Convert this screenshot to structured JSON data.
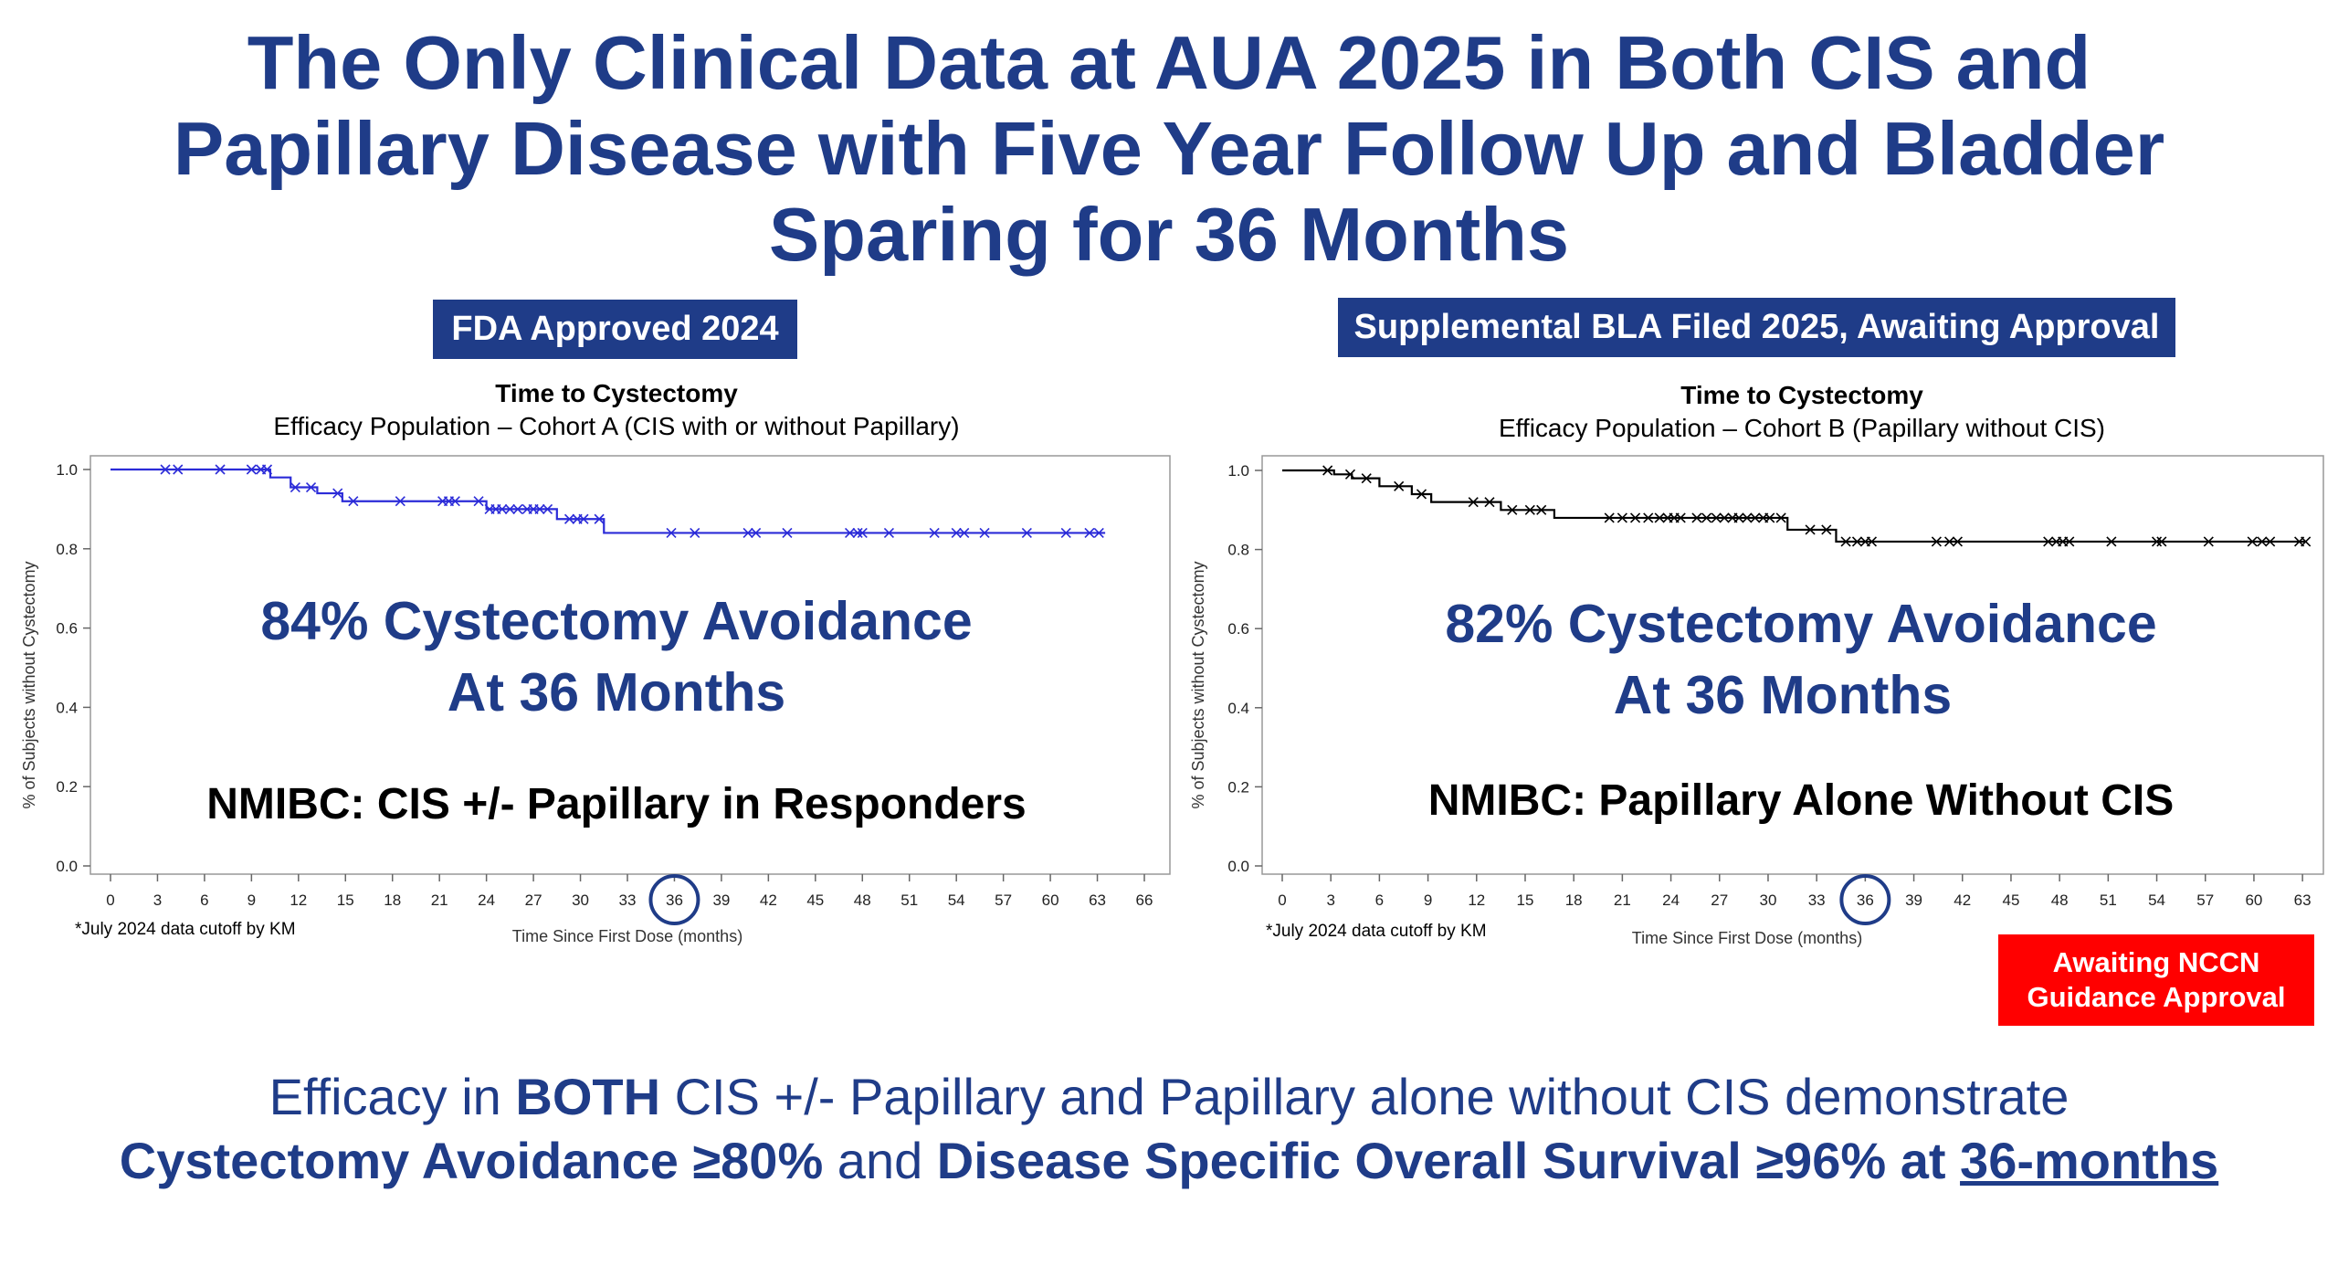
{
  "title_lines": [
    "The Only Clinical Data at AUA 2025 in Both CIS and",
    "Papillary Disease with Five Year Follow Up and Bladder",
    "Sparing for 36 Months"
  ],
  "badge_left": "FDA Approved 2024",
  "badge_right": "Supplemental BLA Filed 2025, Awaiting Approval",
  "charts": [
    {
      "title": "Time to Cystectomy",
      "subtitle": "Efficacy Population – Cohort A (CIS with or without Papillary)",
      "ylabel": "% of Subjects without Cystectomy",
      "xlabel": "Time Since First Dose (months)",
      "footnote": "*July 2024 data cutoff by KM",
      "highlight": "84% Cystectomy Avoidance",
      "highlight2": "At 36 Months",
      "subtext": "NMIBC: CIS +/- Papillary in Responders",
      "line_color": "#2b2bd8"
    },
    {
      "title": "Time to Cystectomy",
      "subtitle": "Efficacy Population – Cohort B (Papillary without CIS)",
      "ylabel": "% of Subjects without Cystectomy",
      "xlabel": "Time Since First Dose (months)",
      "footnote": "*July 2024 data cutoff by KM",
      "highlight": "82% Cystectomy Avoidance",
      "highlight2": "At 36 Months",
      "subtext": "NMIBC: Papillary Alone Without CIS",
      "line_color": "#000000"
    }
  ],
  "nccn_line1": "Awaiting NCCN",
  "nccn_line2": "Guidance Approval",
  "bottom": {
    "l1a": "Efficacy in ",
    "l1b": "BOTH",
    "l1c": " CIS +/- Papillary and Papillary alone without CIS demonstrate",
    "l2a": "Cystectomy Avoidance ≥80%",
    "l2b": " and ",
    "l2c": "Disease Specific Overall Survival ≥96% at ",
    "l2d": "36-months"
  },
  "chart_data": [
    {
      "type": "line",
      "title": "Time to Cystectomy",
      "subtitle": "Efficacy Population – Cohort A (CIS with or without Papillary)",
      "xlabel": "Time Since First Dose (months)",
      "ylabel": "% of Subjects without Cystectomy",
      "xlim": [
        0,
        66
      ],
      "ylim": [
        0,
        1.0
      ],
      "xticks": [
        0,
        3,
        6,
        9,
        12,
        15,
        18,
        21,
        24,
        27,
        30,
        33,
        36,
        39,
        42,
        45,
        48,
        51,
        54,
        57,
        60,
        63,
        66
      ],
      "yticks": [
        0.0,
        0.2,
        0.4,
        0.6,
        0.8,
        1.0
      ],
      "highlight_x": 36,
      "step_x": [
        0,
        10.2,
        11.5,
        13.2,
        14.8,
        24,
        28.5,
        31.5,
        63.5
      ],
      "step_y": [
        1.0,
        0.98,
        0.955,
        0.94,
        0.92,
        0.9,
        0.875,
        0.84,
        0.84
      ],
      "censor_x": [
        3.5,
        4.3,
        7,
        9,
        9.6,
        10,
        11.8,
        12.8,
        14.5,
        15.5,
        18.5,
        21.2,
        21.6,
        22,
        23.5,
        24.2,
        24.6,
        25,
        25.5,
        26,
        26.6,
        27,
        27.4,
        27.9,
        29.3,
        29.8,
        30.2,
        31.2,
        35.8,
        37.3,
        40.7,
        41.2,
        43.2,
        47.2,
        47.7,
        48,
        49.7,
        52.6,
        54,
        54.5,
        55.8,
        58.5,
        61,
        62.5,
        63.1
      ]
    },
    {
      "type": "line",
      "title": "Time to Cystectomy",
      "subtitle": "Efficacy Population – Cohort B (Papillary without CIS)",
      "xlabel": "Time Since First Dose (months)",
      "ylabel": "% of Subjects without Cystectomy",
      "xlim": [
        0,
        63.5
      ],
      "ylim": [
        0,
        1.0
      ],
      "xticks": [
        0,
        3,
        6,
        9,
        12,
        15,
        18,
        21,
        24,
        27,
        30,
        33,
        36,
        39,
        42,
        45,
        48,
        51,
        54,
        57,
        60,
        63
      ],
      "yticks": [
        0.0,
        0.2,
        0.4,
        0.6,
        0.8,
        1.0
      ],
      "highlight_x": 36,
      "step_x": [
        0,
        3.2,
        4.3,
        6,
        8,
        9.2,
        13.5,
        16.8,
        31.2,
        34.2,
        63.2
      ],
      "step_y": [
        1.0,
        0.99,
        0.98,
        0.96,
        0.94,
        0.92,
        0.9,
        0.88,
        0.85,
        0.82,
        0.82
      ],
      "censor_x": [
        2.8,
        4.2,
        5.2,
        7.2,
        8.6,
        11.8,
        12.8,
        14.2,
        15.3,
        16,
        20.2,
        21,
        21.8,
        22.6,
        23.3,
        23.8,
        24.2,
        24.6,
        25.6,
        26.2,
        26.8,
        27.3,
        27.8,
        28.2,
        28.7,
        29.2,
        29.7,
        30.1,
        30.8,
        32.6,
        33.6,
        34.8,
        35.5,
        36,
        36.4,
        40.4,
        41.2,
        41.7,
        47.3,
        47.8,
        48.2,
        48.6,
        51.2,
        54,
        54.3,
        57.2,
        59.9,
        60.5,
        61,
        62.8,
        63.2
      ]
    }
  ]
}
